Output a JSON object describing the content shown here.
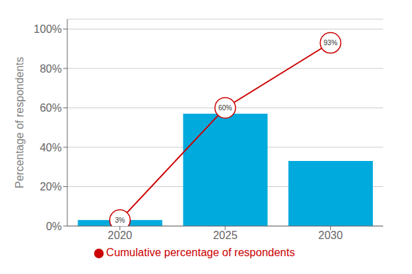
{
  "chart_data": {
    "type": "bar",
    "categories": [
      "2020",
      "2025",
      "2030"
    ],
    "ylabel": "Percentage of respondents",
    "ylim": [
      0,
      105
    ],
    "yticks": [
      {
        "value": 0,
        "label": "0%"
      },
      {
        "value": 20,
        "label": "20%"
      },
      {
        "value": 40,
        "label": "40%"
      },
      {
        "value": 60,
        "label": "60%"
      },
      {
        "value": 80,
        "label": "80%"
      },
      {
        "value": 100,
        "label": "100%"
      }
    ],
    "grid": true,
    "legend": "bottom",
    "series": [
      {
        "type": "bar",
        "color": "#00AADD",
        "values": [
          3,
          57,
          33
        ]
      },
      {
        "name": "Cumulative percentage of respondents",
        "type": "line",
        "color": "#CC0000",
        "marker": "circle",
        "data_labels": true,
        "values": [
          3,
          60,
          93
        ],
        "value_labels": [
          "3%",
          "60%",
          "93%"
        ]
      }
    ]
  }
}
